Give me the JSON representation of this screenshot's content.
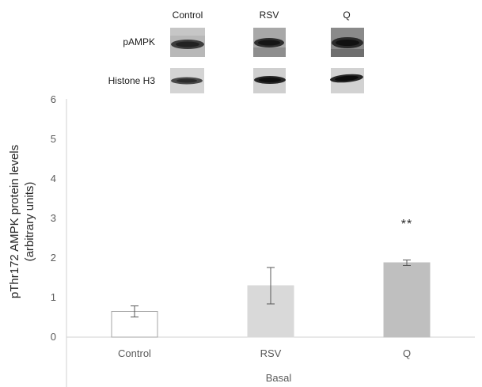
{
  "blot": {
    "columns": [
      "Control",
      "RSV",
      "Q"
    ],
    "rows": [
      "pAMPK",
      "Histone H3"
    ]
  },
  "chart_data": {
    "type": "bar",
    "categories": [
      "Control",
      "RSV",
      "Q"
    ],
    "group_label": "Basal",
    "values": [
      0.65,
      1.3,
      1.88
    ],
    "error": [
      0.14,
      0.46,
      0.07
    ],
    "bar_colors": [
      "#ffffff",
      "#d9d9d9",
      "#bfbfbf"
    ],
    "bar_edge_colors": [
      "#a6a6a6",
      "#d9d9d9",
      "#bfbfbf"
    ],
    "annotations": [
      {
        "category": "Q",
        "text": "**"
      }
    ],
    "ylabel_line1": "pThr172 AMPK protein levels",
    "ylabel_line2": "(arbitrary units)",
    "ylim": [
      0,
      6
    ],
    "yticks": [
      "0",
      "1",
      "2",
      "3",
      "4",
      "5",
      "6"
    ],
    "grid": false
  }
}
